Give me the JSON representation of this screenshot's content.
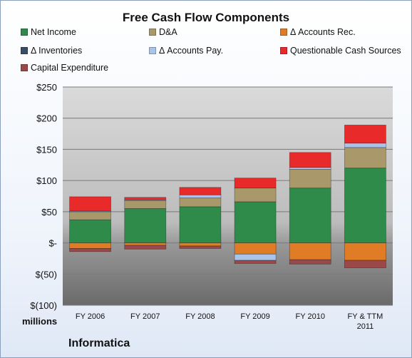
{
  "page": {
    "brand": "Informatica",
    "unit_label": "millions"
  },
  "chart_data": {
    "type": "bar",
    "stacked": true,
    "title": "Free Cash Flow Components",
    "xlabel": "",
    "ylabel": "",
    "ylim": [
      -100,
      250
    ],
    "grid": true,
    "legend_position": "top",
    "categories": [
      "FY 2006",
      "FY 2007",
      "FY 2008",
      "FY 2009",
      "FY 2010",
      "FY & TTM\n2011"
    ],
    "ytick_values": [
      -100,
      -50,
      0,
      50,
      100,
      150,
      200,
      250
    ],
    "ytick_labels": [
      "$(100)",
      "$(50)",
      "$-",
      "$50",
      "$100",
      "$150",
      "$200",
      "$250"
    ],
    "series": [
      {
        "name": "Net Income",
        "color": "#2e8b4a",
        "values": [
          37,
          55,
          58,
          66,
          88,
          120
        ]
      },
      {
        "name": "D&A",
        "color": "#a8986a",
        "values": [
          13,
          13,
          14,
          22,
          30,
          33
        ]
      },
      {
        "name": "Δ Accounts Rec.",
        "color": "#e07b26",
        "values": [
          -9,
          -4,
          -5,
          -18,
          -27,
          -28
        ]
      },
      {
        "name": "Δ Inventories",
        "color": "#3a4d66",
        "values": [
          0,
          0,
          0,
          0,
          0,
          0
        ]
      },
      {
        "name": "Δ Accounts Pay.",
        "color": "#a9c4e8",
        "values": [
          1,
          1,
          5,
          -10,
          3,
          7
        ]
      },
      {
        "name": "Questionable Cash Sources",
        "color": "#e82a2a",
        "values": [
          23,
          4,
          12,
          16,
          24,
          29
        ]
      },
      {
        "name": "Capital Expenditure",
        "color": "#9a4848",
        "values": [
          -5,
          -6,
          -4,
          -5,
          -7,
          -12
        ]
      }
    ]
  }
}
